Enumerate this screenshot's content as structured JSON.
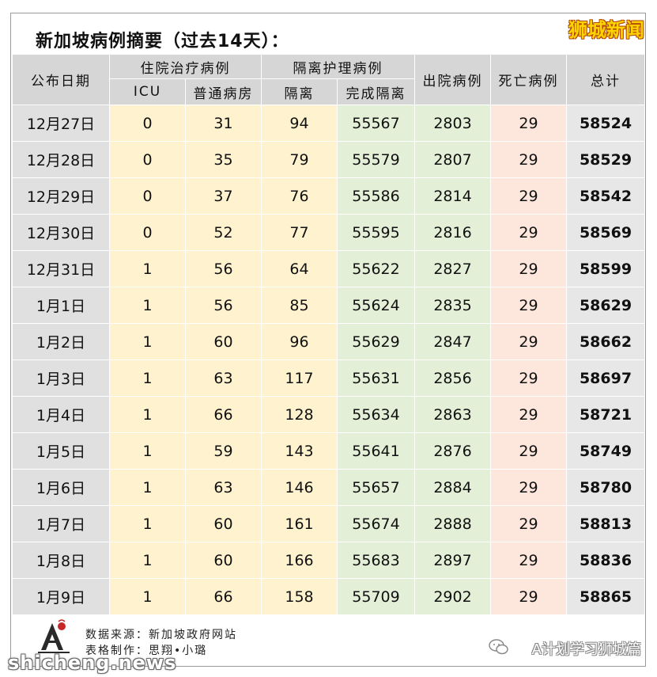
{
  "header": {
    "title": "新加坡病例摘要（过去14天）：",
    "brand": "狮城新闻"
  },
  "columns": {
    "date": "公布日期",
    "hospital_group": "住院治疗病例",
    "icu": "ICU",
    "ward": "普通病房",
    "isolation_group": "隔离护理病例",
    "isolation": "隔离",
    "completed": "完成隔离",
    "discharged": "出院病例",
    "deaths": "死亡病例",
    "total": "总计"
  },
  "rows": [
    {
      "date": "12月27日",
      "icu": "0",
      "ward": "31",
      "iso": "94",
      "done": "55567",
      "disc": "2803",
      "death": "29",
      "total": "58524"
    },
    {
      "date": "12月28日",
      "icu": "0",
      "ward": "35",
      "iso": "79",
      "done": "55579",
      "disc": "2807",
      "death": "29",
      "total": "58529"
    },
    {
      "date": "12月29日",
      "icu": "0",
      "ward": "37",
      "iso": "76",
      "done": "55586",
      "disc": "2814",
      "death": "29",
      "total": "58542"
    },
    {
      "date": "12月30日",
      "icu": "0",
      "ward": "52",
      "iso": "77",
      "done": "55595",
      "disc": "2816",
      "death": "29",
      "total": "58569"
    },
    {
      "date": "12月31日",
      "icu": "1",
      "ward": "56",
      "iso": "64",
      "done": "55622",
      "disc": "2827",
      "death": "29",
      "total": "58599"
    },
    {
      "date": "1月1日",
      "icu": "1",
      "ward": "56",
      "iso": "85",
      "done": "55624",
      "disc": "2835",
      "death": "29",
      "total": "58629"
    },
    {
      "date": "1月2日",
      "icu": "1",
      "ward": "60",
      "iso": "96",
      "done": "55629",
      "disc": "2847",
      "death": "29",
      "total": "58662"
    },
    {
      "date": "1月3日",
      "icu": "1",
      "ward": "63",
      "iso": "117",
      "done": "55631",
      "disc": "2856",
      "death": "29",
      "total": "58697"
    },
    {
      "date": "1月4日",
      "icu": "1",
      "ward": "66",
      "iso": "128",
      "done": "55634",
      "disc": "2863",
      "death": "29",
      "total": "58721"
    },
    {
      "date": "1月5日",
      "icu": "1",
      "ward": "59",
      "iso": "143",
      "done": "55641",
      "disc": "2876",
      "death": "29",
      "total": "58749"
    },
    {
      "date": "1月6日",
      "icu": "1",
      "ward": "63",
      "iso": "146",
      "done": "55657",
      "disc": "2884",
      "death": "29",
      "total": "58780"
    },
    {
      "date": "1月7日",
      "icu": "1",
      "ward": "60",
      "iso": "161",
      "done": "55674",
      "disc": "2888",
      "death": "29",
      "total": "58813"
    },
    {
      "date": "1月8日",
      "icu": "1",
      "ward": "60",
      "iso": "166",
      "done": "55683",
      "disc": "2897",
      "death": "29",
      "total": "58836"
    },
    {
      "date": "1月9日",
      "icu": "1",
      "ward": "66",
      "iso": "158",
      "done": "55709",
      "disc": "2902",
      "death": "29",
      "total": "58865"
    }
  ],
  "footer": {
    "source": "数据来源：新加坡政府网站",
    "maker": "表格制作：思翔•小璐",
    "watermark_left": "shicheng.news",
    "watermark_right": "A计划学习狮城篇",
    "logo_icon": "a-plan-logo-icon",
    "wechat_icon": "wechat-icon"
  },
  "colors": {
    "header_bg": "#d6d6d6",
    "hospital_bg": "#fff3cf",
    "isolation_done_bg": "#e3efd6",
    "deaths_bg": "#fde6dc",
    "total_bg": "#e7e7e7",
    "brand": "#ffd400"
  }
}
